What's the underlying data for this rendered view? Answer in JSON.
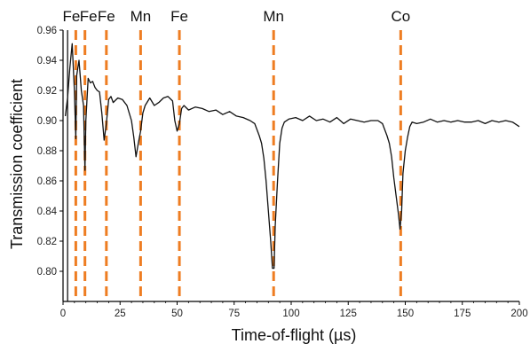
{
  "chart_data": {
    "type": "line",
    "title": "",
    "xlabel": "Time-of-flight (µs)",
    "ylabel": "Transmission coefficient",
    "xlim": [
      0,
      200
    ],
    "ylim": [
      0.78,
      0.96
    ],
    "x_ticks": [
      0,
      25,
      50,
      75,
      100,
      125,
      150,
      175,
      200
    ],
    "y_ticks": [
      0.8,
      0.82,
      0.84,
      0.86,
      0.88,
      0.9,
      0.92,
      0.94,
      0.96
    ],
    "grid": false,
    "line_color": "#111111",
    "marker_color": "#ee7d22",
    "series": [
      {
        "x": [
          1,
          2,
          3,
          4,
          5,
          5.6,
          6,
          7,
          7.5,
          8,
          9,
          9.6,
          10,
          11,
          12,
          13,
          14,
          15,
          16,
          17,
          18,
          19,
          20,
          21,
          22,
          24,
          26,
          28,
          30,
          31,
          32,
          33,
          34,
          35,
          36,
          38,
          40,
          42,
          44,
          46,
          48,
          49,
          50,
          51,
          52,
          53,
          55,
          58,
          61,
          64,
          67,
          70,
          73,
          76,
          79,
          82,
          84,
          86,
          87,
          88,
          89,
          90,
          91,
          91.8,
          92.5,
          93,
          94,
          95,
          96,
          97,
          99,
          102,
          105,
          108,
          111,
          114,
          117,
          120,
          123,
          126,
          129,
          132,
          135,
          138,
          140,
          142,
          143,
          144,
          145,
          146,
          147,
          147.7,
          148.4,
          149,
          150,
          151,
          152,
          153,
          155,
          158,
          161,
          164,
          167,
          170,
          173,
          176,
          179,
          182,
          185,
          188,
          191,
          194,
          197,
          200
        ],
        "y": [
          0.903,
          0.915,
          0.935,
          0.951,
          0.92,
          0.888,
          0.93,
          0.94,
          0.93,
          0.92,
          0.91,
          0.867,
          0.9,
          0.928,
          0.925,
          0.926,
          0.922,
          0.92,
          0.919,
          0.905,
          0.887,
          0.898,
          0.914,
          0.916,
          0.912,
          0.915,
          0.914,
          0.91,
          0.9,
          0.889,
          0.876,
          0.885,
          0.893,
          0.905,
          0.91,
          0.915,
          0.91,
          0.912,
          0.915,
          0.916,
          0.913,
          0.9,
          0.893,
          0.898,
          0.908,
          0.91,
          0.907,
          0.909,
          0.908,
          0.906,
          0.907,
          0.904,
          0.906,
          0.903,
          0.902,
          0.9,
          0.898,
          0.89,
          0.885,
          0.875,
          0.86,
          0.84,
          0.82,
          0.802,
          0.802,
          0.83,
          0.86,
          0.885,
          0.895,
          0.899,
          0.901,
          0.902,
          0.9,
          0.903,
          0.9,
          0.901,
          0.899,
          0.902,
          0.898,
          0.901,
          0.9,
          0.899,
          0.9,
          0.9,
          0.898,
          0.89,
          0.885,
          0.876,
          0.862,
          0.85,
          0.838,
          0.828,
          0.84,
          0.865,
          0.88,
          0.889,
          0.896,
          0.899,
          0.898,
          0.899,
          0.901,
          0.899,
          0.9,
          0.899,
          0.9,
          0.899,
          0.899,
          0.9,
          0.898,
          0.9,
          0.899,
          0.9,
          0.899,
          0.896
        ]
      }
    ],
    "annotations": [
      {
        "label": "Fe",
        "x": 5.6
      },
      {
        "label": "Fe",
        "x": 9.6
      },
      {
        "label": "Fe",
        "x": 19
      },
      {
        "label": "Mn",
        "x": 34
      },
      {
        "label": "Fe",
        "x": 51
      },
      {
        "label": "Mn",
        "x": 92.3
      },
      {
        "label": "Co",
        "x": 148
      }
    ]
  }
}
